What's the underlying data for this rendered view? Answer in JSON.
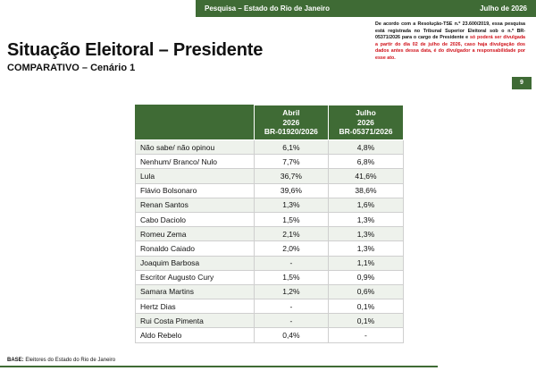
{
  "header": {
    "survey": "Pesquisa – Estado do Rio de Janeiro",
    "date": "Julho de 2026"
  },
  "title": "Situação Eleitoral – Presidente",
  "subtitle": "COMPARATIVO – Cenário 1",
  "notice": {
    "black": "De acordo com a Resolução-TSE n.º 23.600/2019, essa pesquisa está registrada no Tribunal Superior Eleitoral sob o n.º BR-05371/2026 para o cargo de Presidente e",
    "red": " só poderá ser divulgada a partir do dia 02 de julho de 2026, caso haja divulgação dos dados antes dessa data, é do divulgador a responsabilidade por esse ato."
  },
  "page_number": "9",
  "table": {
    "columns": [
      {
        "line1": "Abril",
        "line2": "2026",
        "line3": "BR-01920/2026"
      },
      {
        "line1": "Julho",
        "line2": "2026",
        "line3": "BR-05371/2026"
      }
    ],
    "rows": [
      {
        "name": "Não sabe/ não opinou",
        "abril": "6,1%",
        "julho": "4,8%"
      },
      {
        "name": "Nenhum/ Branco/ Nulo",
        "abril": "7,7%",
        "julho": "6,8%"
      },
      {
        "name": "Lula",
        "abril": "36,7%",
        "julho": "41,6%"
      },
      {
        "name": "Flávio Bolsonaro",
        "abril": "39,6%",
        "julho": "38,6%"
      },
      {
        "name": "Renan Santos",
        "abril": "1,3%",
        "julho": "1,6%"
      },
      {
        "name": "Cabo Daciolo",
        "abril": "1,5%",
        "julho": "1,3%"
      },
      {
        "name": "Romeu Zema",
        "abril": "2,1%",
        "julho": "1,3%"
      },
      {
        "name": "Ronaldo Caiado",
        "abril": "2,0%",
        "julho": "1,3%"
      },
      {
        "name": "Joaquim Barbosa",
        "abril": "-",
        "julho": "1,1%"
      },
      {
        "name": "Escritor Augusto Cury",
        "abril": "1,5%",
        "julho": "0,9%"
      },
      {
        "name": "Samara Martins",
        "abril": "1,2%",
        "julho": "0,6%"
      },
      {
        "name": "Hertz Dias",
        "abril": "-",
        "julho": "0,1%"
      },
      {
        "name": "Rui Costa Pimenta",
        "abril": "-",
        "julho": "0,1%"
      },
      {
        "name": "Aldo Rebelo",
        "abril": "0,4%",
        "julho": "-"
      }
    ]
  },
  "base": {
    "label": "BASE:",
    "text": " Eleitores do Estado do Rio de Janeiro"
  },
  "colors": {
    "brand_green": "#3f6b35",
    "alert_red": "#d0131b"
  }
}
